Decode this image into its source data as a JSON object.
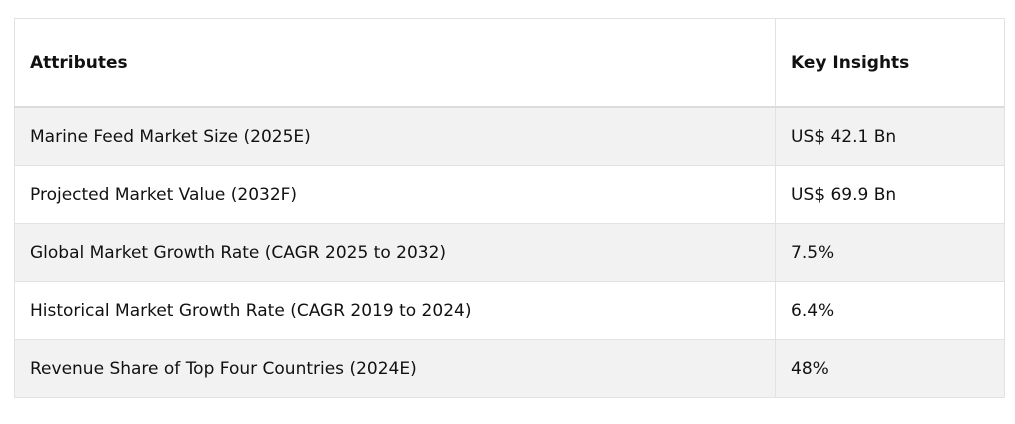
{
  "table": {
    "headers": [
      "Attributes",
      "Key Insights"
    ],
    "rows": [
      [
        "Marine Feed Market Size (2025E)",
        "US$ 42.1  Bn"
      ],
      [
        "Projected Market Value (2032F)",
        "US$ 69.9 Bn"
      ],
      [
        "Global Market Growth Rate (CAGR 2025 to 2032)",
        "7.5%"
      ],
      [
        "Historical Market Growth Rate (CAGR 2019 to 2024)",
        "6.4%"
      ],
      [
        "Revenue Share of Top Four Countries (2024E)",
        "48%"
      ]
    ]
  }
}
